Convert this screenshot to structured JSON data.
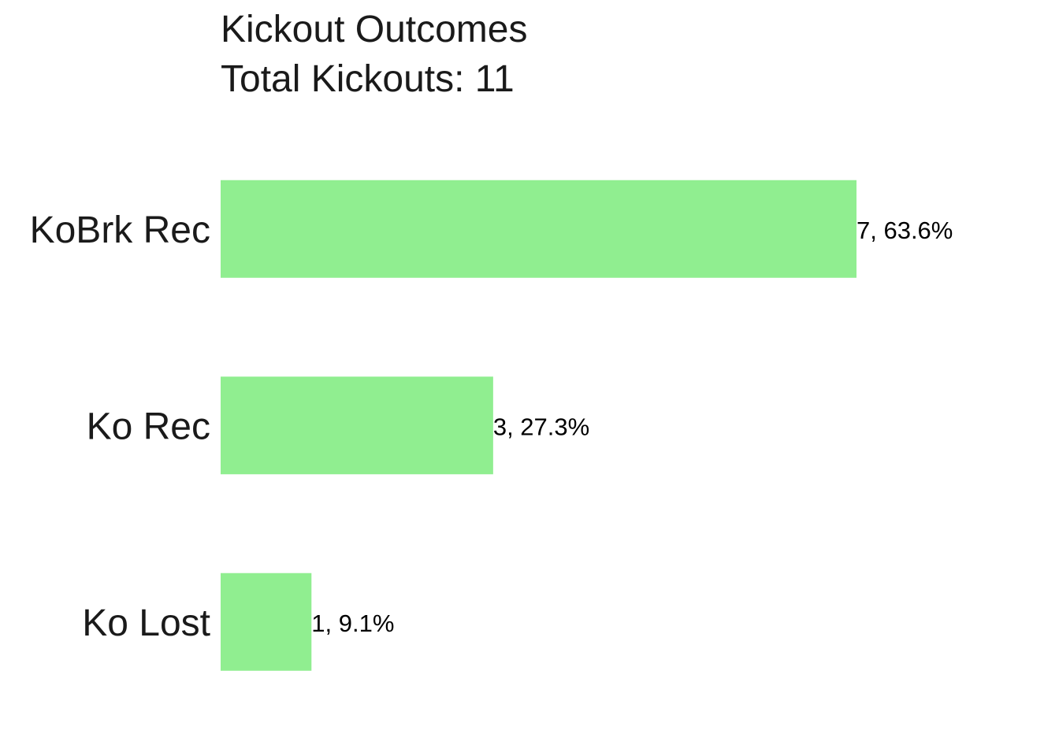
{
  "chart_data": {
    "type": "bar",
    "orientation": "horizontal",
    "title": "Kickout Outcomes",
    "subtitle": "Total Kickouts: 11",
    "categories": [
      "KoBrk Rec",
      "Ko Rec",
      "Ko Lost"
    ],
    "values": [
      7,
      3,
      1
    ],
    "data_labels": [
      "7, 63.6%",
      "3, 27.3%",
      "1, 9.1%"
    ],
    "xlim": [
      0,
      7
    ],
    "xlabel": "",
    "ylabel": "",
    "grid": false,
    "bar_color": "#90EE90"
  }
}
